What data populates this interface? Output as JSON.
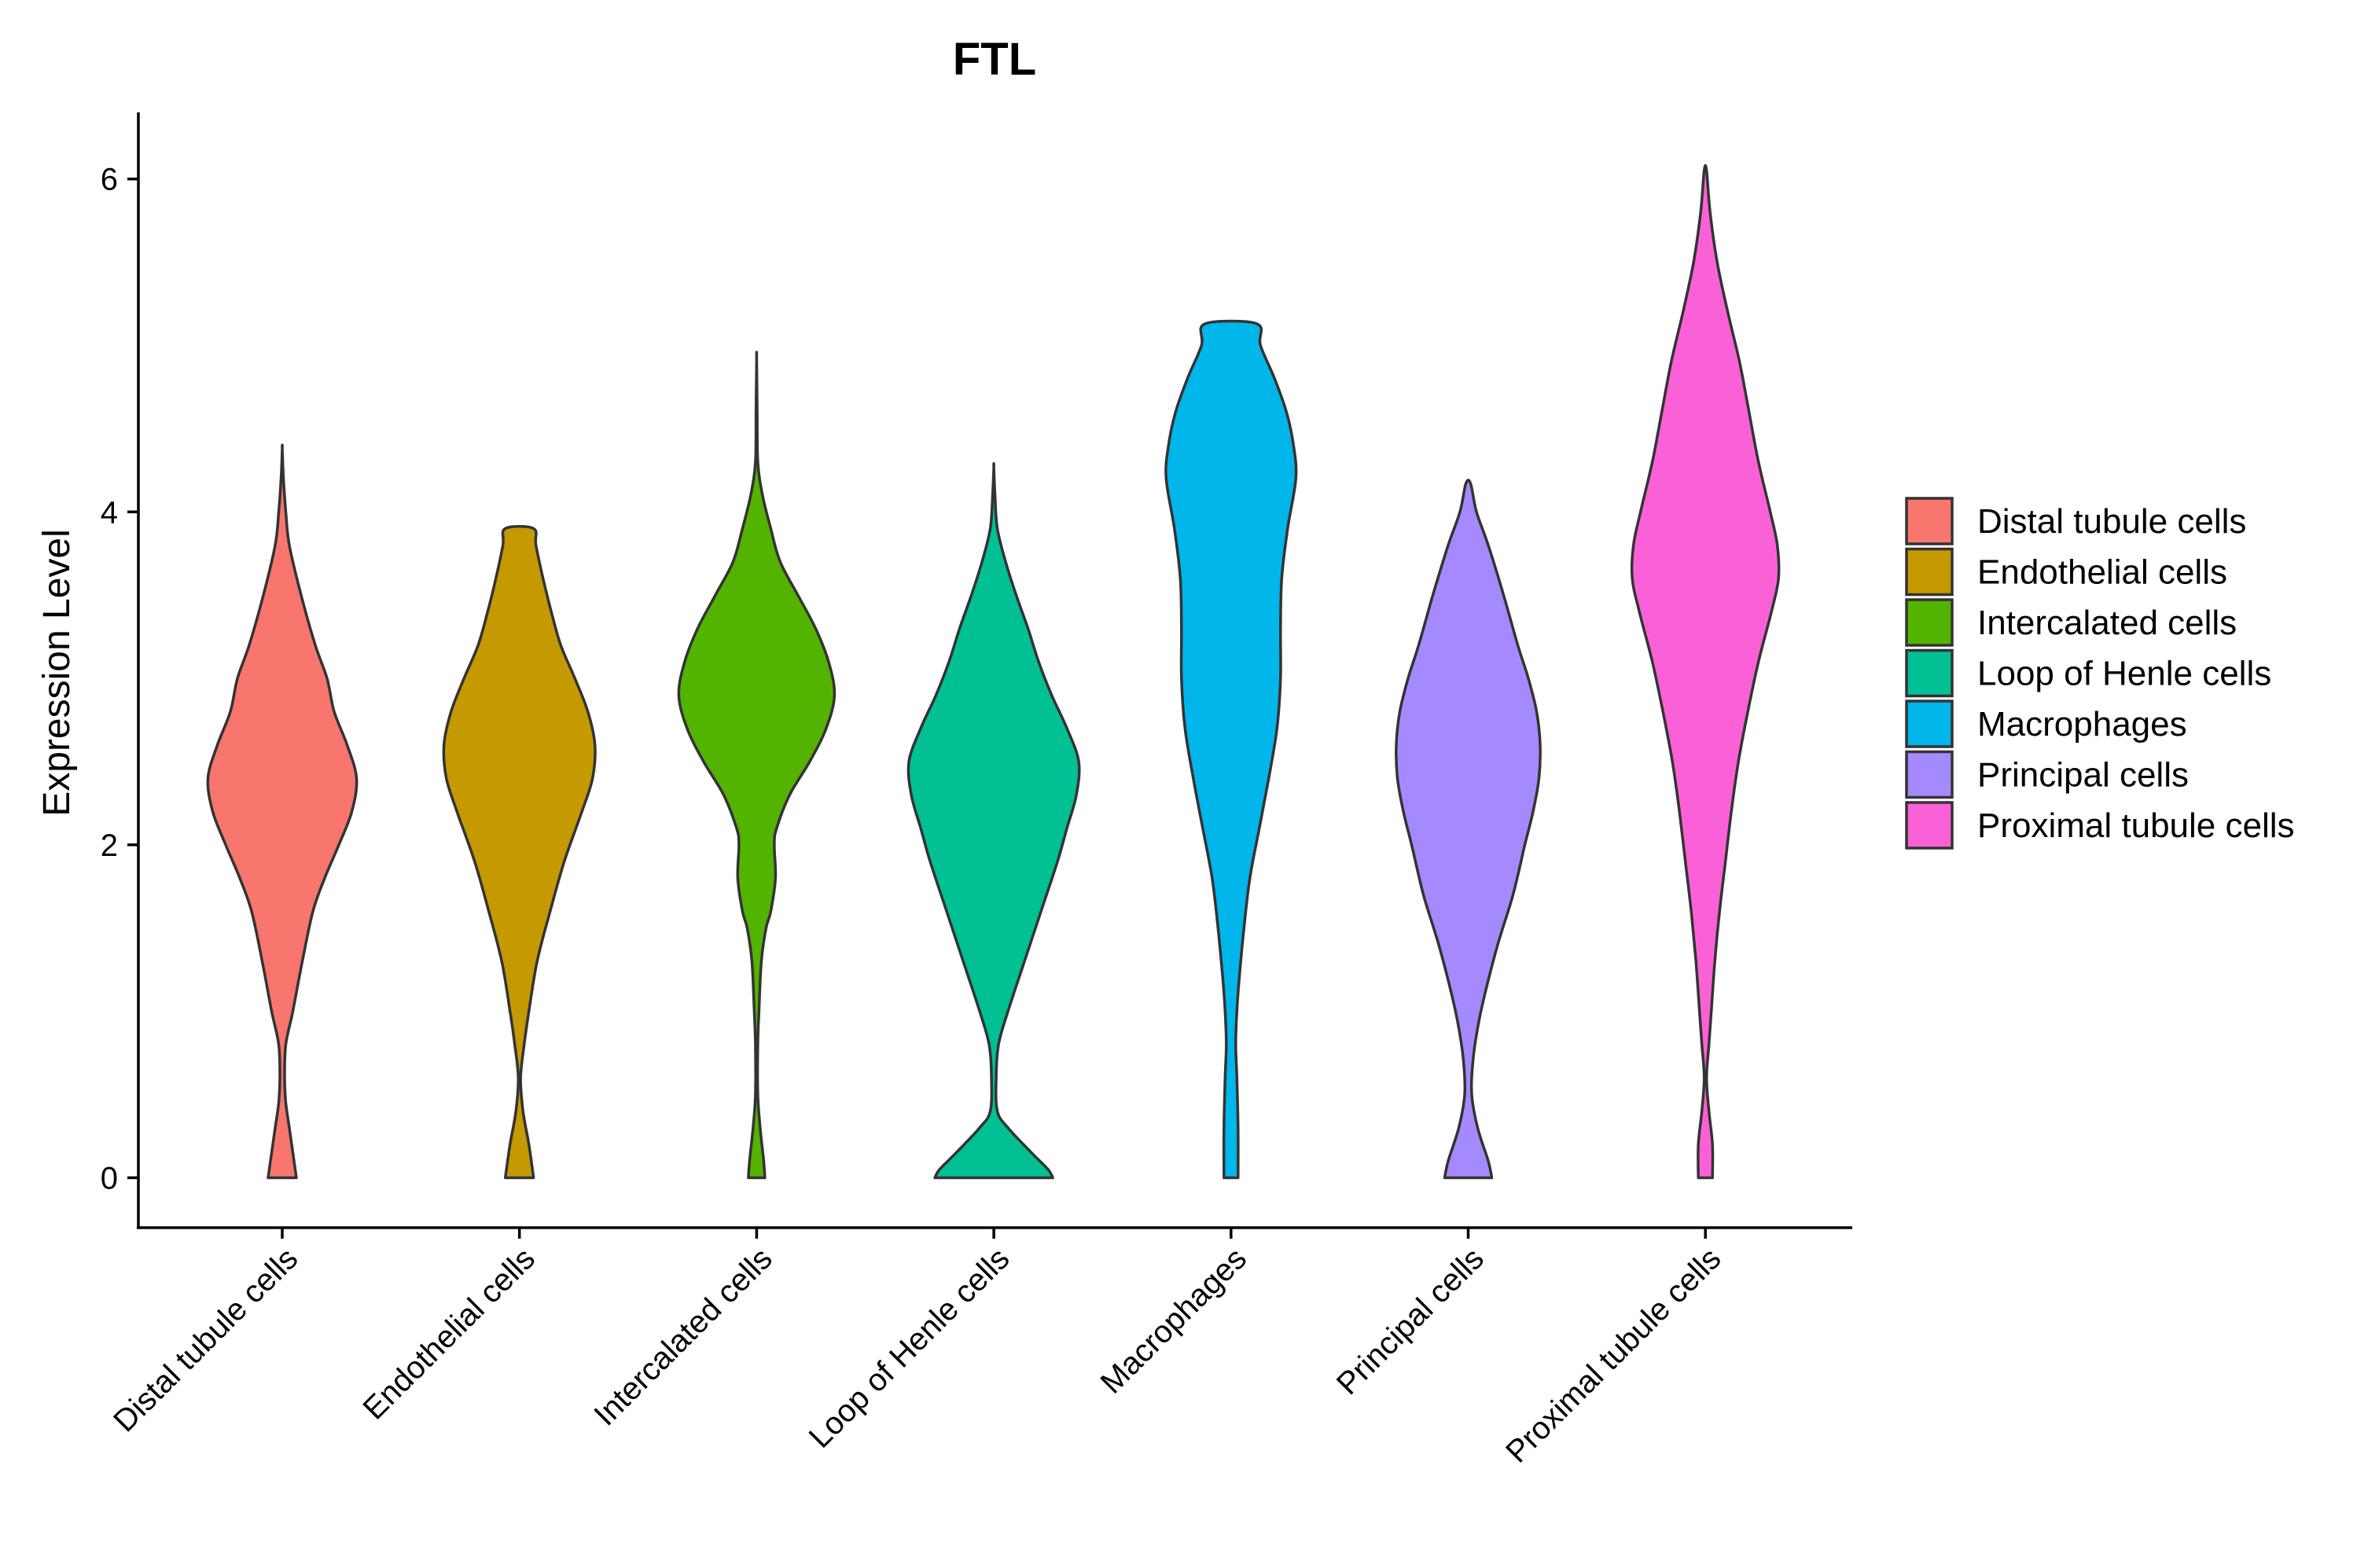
{
  "chart_data": {
    "type": "violin",
    "title": "FTL",
    "xlabel": "",
    "ylabel": "Expression Level",
    "ylim": [
      -0.3,
      6.4
    ],
    "yticks": [
      0,
      2,
      4,
      6
    ],
    "grid": false,
    "legend_position": "right",
    "categories": [
      "Distal tubule cells",
      "Endothelial cells",
      "Intercalated cells",
      "Loop of Henle cells",
      "Macrophages",
      "Principal cells",
      "Proximal tubule cells"
    ],
    "colors": [
      "#F8766D",
      "#C49A00",
      "#53B400",
      "#00C094",
      "#00B6EB",
      "#A58AFF",
      "#FB61D7"
    ],
    "series": [
      {
        "name": "Distal tubule cells",
        "max": 4.38,
        "profile": [
          [
            0,
            0.12
          ],
          [
            0.1,
            0.1
          ],
          [
            0.3,
            0.06
          ],
          [
            0.45,
            0.03
          ],
          [
            0.6,
            0.02
          ],
          [
            0.8,
            0.03
          ],
          [
            1.0,
            0.09
          ],
          [
            1.3,
            0.17
          ],
          [
            1.6,
            0.26
          ],
          [
            1.8,
            0.36
          ],
          [
            2.0,
            0.48
          ],
          [
            2.2,
            0.59
          ],
          [
            2.4,
            0.63
          ],
          [
            2.6,
            0.55
          ],
          [
            2.8,
            0.44
          ],
          [
            3.0,
            0.38
          ],
          [
            3.2,
            0.28
          ],
          [
            3.5,
            0.16
          ],
          [
            3.8,
            0.06
          ],
          [
            4.0,
            0.03
          ],
          [
            4.2,
            0.01
          ],
          [
            4.38,
            0.0
          ]
        ]
      },
      {
        "name": "Endothelial cells",
        "max": 3.9,
        "profile": [
          [
            0,
            0.12
          ],
          [
            0.2,
            0.08
          ],
          [
            0.4,
            0.03
          ],
          [
            0.6,
            0.01
          ],
          [
            0.8,
            0.04
          ],
          [
            1.0,
            0.08
          ],
          [
            1.3,
            0.15
          ],
          [
            1.6,
            0.26
          ],
          [
            1.9,
            0.38
          ],
          [
            2.2,
            0.53
          ],
          [
            2.4,
            0.62
          ],
          [
            2.6,
            0.64
          ],
          [
            2.8,
            0.58
          ],
          [
            3.0,
            0.47
          ],
          [
            3.2,
            0.35
          ],
          [
            3.4,
            0.27
          ],
          [
            3.6,
            0.2
          ],
          [
            3.8,
            0.14
          ],
          [
            3.9,
            0.12
          ]
        ]
      },
      {
        "name": "Intercalated cells",
        "max": 4.92,
        "profile": [
          [
            0,
            0.07
          ],
          [
            0.1,
            0.06
          ],
          [
            0.3,
            0.03
          ],
          [
            0.5,
            0.01
          ],
          [
            0.8,
            0.01
          ],
          [
            1.0,
            0.02
          ],
          [
            1.3,
            0.04
          ],
          [
            1.5,
            0.08
          ],
          [
            1.6,
            0.12
          ],
          [
            1.8,
            0.16
          ],
          [
            2.0,
            0.15
          ],
          [
            2.1,
            0.17
          ],
          [
            2.3,
            0.28
          ],
          [
            2.5,
            0.45
          ],
          [
            2.7,
            0.59
          ],
          [
            2.9,
            0.66
          ],
          [
            3.1,
            0.61
          ],
          [
            3.3,
            0.5
          ],
          [
            3.5,
            0.35
          ],
          [
            3.7,
            0.2
          ],
          [
            3.9,
            0.12
          ],
          [
            4.1,
            0.05
          ],
          [
            4.3,
            0.01
          ],
          [
            4.6,
            0.005
          ],
          [
            4.92,
            0.0
          ]
        ]
      },
      {
        "name": "Loop of Henle cells",
        "max": 4.27,
        "profile": [
          [
            0,
            0.5
          ],
          [
            0.05,
            0.46
          ],
          [
            0.15,
            0.32
          ],
          [
            0.3,
            0.12
          ],
          [
            0.4,
            0.03
          ],
          [
            0.6,
            0.02
          ],
          [
            0.8,
            0.04
          ],
          [
            1.0,
            0.12
          ],
          [
            1.3,
            0.26
          ],
          [
            1.6,
            0.4
          ],
          [
            1.9,
            0.54
          ],
          [
            2.1,
            0.62
          ],
          [
            2.3,
            0.7
          ],
          [
            2.5,
            0.72
          ],
          [
            2.7,
            0.62
          ],
          [
            2.9,
            0.49
          ],
          [
            3.1,
            0.38
          ],
          [
            3.3,
            0.29
          ],
          [
            3.5,
            0.19
          ],
          [
            3.7,
            0.1
          ],
          [
            3.9,
            0.03
          ],
          [
            4.1,
            0.01
          ],
          [
            4.27,
            0.0
          ]
        ]
      },
      {
        "name": "Macrophages",
        "max": 5.13,
        "profile": [
          [
            0,
            0.06
          ],
          [
            0.3,
            0.06
          ],
          [
            0.6,
            0.05
          ],
          [
            0.8,
            0.04
          ],
          [
            1.0,
            0.05
          ],
          [
            1.2,
            0.07
          ],
          [
            1.5,
            0.11
          ],
          [
            1.8,
            0.16
          ],
          [
            2.1,
            0.24
          ],
          [
            2.4,
            0.32
          ],
          [
            2.7,
            0.39
          ],
          [
            3.0,
            0.42
          ],
          [
            3.3,
            0.42
          ],
          [
            3.6,
            0.43
          ],
          [
            3.9,
            0.48
          ],
          [
            4.2,
            0.55
          ],
          [
            4.4,
            0.53
          ],
          [
            4.6,
            0.47
          ],
          [
            4.8,
            0.37
          ],
          [
            5.0,
            0.25
          ],
          [
            5.13,
            0.22
          ]
        ]
      },
      {
        "name": "Principal cells",
        "max": 4.17,
        "profile": [
          [
            0,
            0.2
          ],
          [
            0.1,
            0.17
          ],
          [
            0.3,
            0.08
          ],
          [
            0.5,
            0.03
          ],
          [
            0.7,
            0.04
          ],
          [
            0.9,
            0.08
          ],
          [
            1.1,
            0.14
          ],
          [
            1.4,
            0.25
          ],
          [
            1.7,
            0.38
          ],
          [
            2.0,
            0.48
          ],
          [
            2.2,
            0.55
          ],
          [
            2.4,
            0.6
          ],
          [
            2.6,
            0.61
          ],
          [
            2.8,
            0.58
          ],
          [
            3.0,
            0.51
          ],
          [
            3.2,
            0.42
          ],
          [
            3.5,
            0.3
          ],
          [
            3.8,
            0.17
          ],
          [
            4.0,
            0.07
          ],
          [
            4.17,
            0.02
          ]
        ]
      },
      {
        "name": "Proximal tubule cells",
        "max": 6.05,
        "profile": [
          [
            0,
            0.06
          ],
          [
            0.2,
            0.06
          ],
          [
            0.4,
            0.03
          ],
          [
            0.6,
            0.01
          ],
          [
            0.8,
            0.03
          ],
          [
            1.0,
            0.05
          ],
          [
            1.3,
            0.08
          ],
          [
            1.6,
            0.12
          ],
          [
            1.9,
            0.17
          ],
          [
            2.2,
            0.22
          ],
          [
            2.5,
            0.28
          ],
          [
            2.8,
            0.36
          ],
          [
            3.1,
            0.45
          ],
          [
            3.4,
            0.56
          ],
          [
            3.6,
            0.62
          ],
          [
            3.8,
            0.61
          ],
          [
            4.0,
            0.55
          ],
          [
            4.3,
            0.45
          ],
          [
            4.6,
            0.37
          ],
          [
            4.9,
            0.29
          ],
          [
            5.2,
            0.19
          ],
          [
            5.5,
            0.1
          ],
          [
            5.8,
            0.04
          ],
          [
            6.05,
            0.01
          ]
        ]
      }
    ]
  }
}
